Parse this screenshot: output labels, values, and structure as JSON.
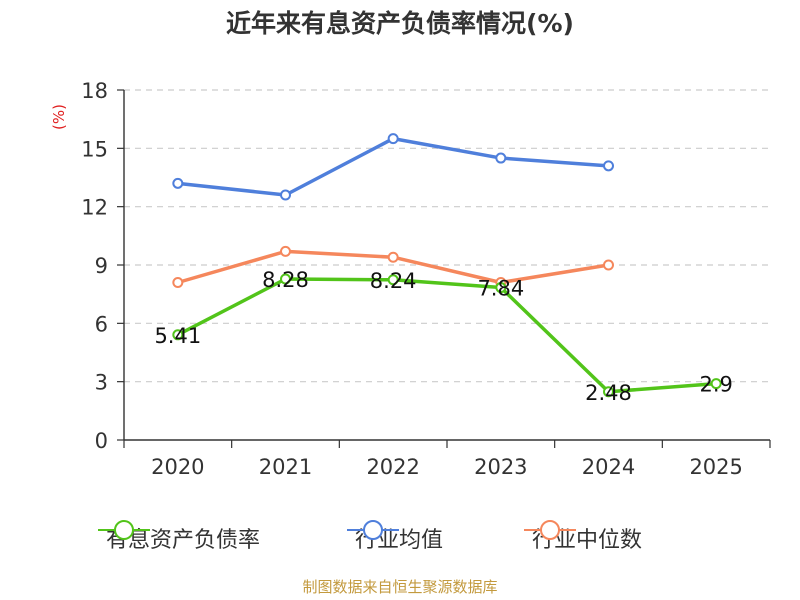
{
  "chart_data": {
    "type": "line",
    "title": "近年来有息资产负债率情况(%)",
    "unit_label": "(%)",
    "categories": [
      "2020",
      "2021",
      "2022",
      "2023",
      "2024",
      "2025"
    ],
    "ylim": [
      0,
      18
    ],
    "yticks": [
      0,
      3,
      6,
      9,
      12,
      15,
      18
    ],
    "grid": true,
    "legend_position": "bottom",
    "series": [
      {
        "name": "有息资产负债率",
        "color": "#52c41a",
        "values": [
          5.41,
          8.28,
          8.24,
          7.84,
          2.48,
          2.9
        ],
        "labels": [
          "5.41",
          "8.28",
          "8.24",
          "7.84",
          "2.48",
          "2.9"
        ]
      },
      {
        "name": "行业均值",
        "color": "#4f7fdb",
        "values": [
          13.2,
          12.6,
          15.5,
          14.5,
          14.1,
          null
        ]
      },
      {
        "name": "行业中位数",
        "color": "#f5875c",
        "values": [
          8.1,
          9.7,
          9.4,
          8.1,
          9.0,
          null
        ]
      }
    ]
  },
  "footer": {
    "source": "制图数据来自恒生聚源数据库",
    "color": "#c39a3e"
  },
  "colors": {
    "unit": "#e02020",
    "axis": "#333333",
    "grid": "#cccccc"
  }
}
